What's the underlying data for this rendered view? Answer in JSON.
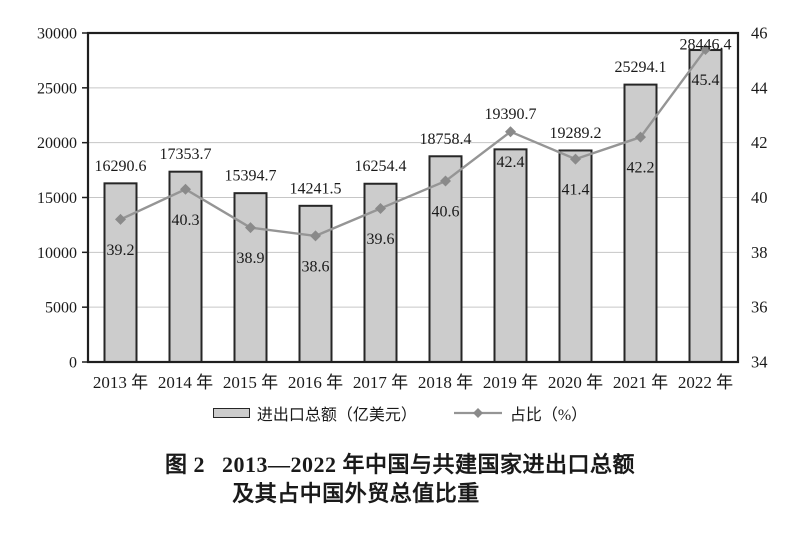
{
  "chart_data": {
    "type": "combo-bar-line",
    "categories": [
      "2013 年",
      "2014 年",
      "2015 年",
      "2016 年",
      "2017 年",
      "2018 年",
      "2019 年",
      "2020 年",
      "2021 年",
      "2022 年"
    ],
    "series": [
      {
        "name": "进出口总额（亿美元）",
        "chart_type": "bar",
        "axis": "left",
        "values": [
          16290.6,
          17353.7,
          15394.7,
          14241.5,
          16254.4,
          18758.4,
          19390.7,
          19289.2,
          25294.1,
          28446.4
        ],
        "labels": [
          "16290.6",
          "17353.7",
          "15394.7",
          "14241.5",
          "16254.4",
          "18758.4",
          "19390.7",
          "19289.2",
          "25294.1",
          "28446.4"
        ]
      },
      {
        "name": "占比（%）",
        "chart_type": "line",
        "axis": "right",
        "values": [
          39.2,
          40.3,
          38.9,
          38.6,
          39.6,
          40.6,
          42.4,
          41.4,
          42.2,
          45.4
        ],
        "labels": [
          "39.2",
          "40.3",
          "38.9",
          "38.6",
          "39.6",
          "40.6",
          "42.4",
          "41.4",
          "42.2",
          "45.4"
        ]
      }
    ],
    "left_axis": {
      "min": 0,
      "max": 30000,
      "step": 5000,
      "tick_labels": [
        "0",
        "5000",
        "10000",
        "15000",
        "20000",
        "25000",
        "30000"
      ]
    },
    "right_axis": {
      "min": 34,
      "max": 46,
      "step": 2,
      "tick_labels": [
        "34",
        "36",
        "38",
        "40",
        "42",
        "44",
        "46"
      ]
    },
    "grid": true,
    "legend_position": "bottom",
    "colors": {
      "bar_fill": "#cccccc",
      "bar_border": "#262626",
      "line": "#959595",
      "marker": "#8a8a8a",
      "grid": "#c6c6c6",
      "frame": "#1f1f1f",
      "text": "#1a1a1a"
    }
  },
  "legend": {
    "items": [
      {
        "label": "进出口总额（亿美元）",
        "marker": "bar-swatch"
      },
      {
        "label": "占比（%）",
        "marker": "line-diamond"
      }
    ]
  },
  "caption": {
    "fig_label": "图 2",
    "title_line1": "2013—2022 年中国与共建国家进出口总额",
    "title_line2": "及其占中国外贸总值比重"
  }
}
